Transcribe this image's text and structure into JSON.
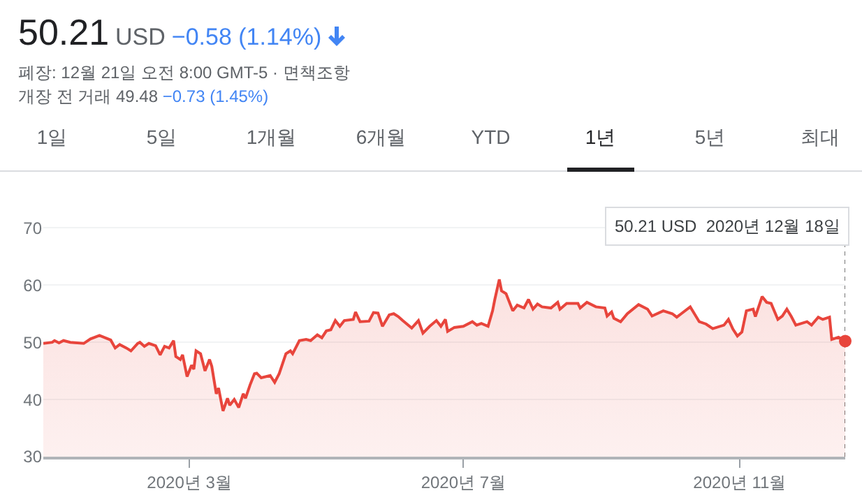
{
  "chart_data": {
    "type": "area",
    "title": "50.21 USD −0.58 (1.14%)",
    "subtitle": "폐장: 12월 21일 오전 8:00 GMT-5 · 면책조항",
    "annotations": [
      "개장 전 거래 49.48 −0.73 (1.45%)",
      "1일",
      "5일",
      "1개월",
      "6개월",
      "YTD",
      "1년",
      "5년",
      "최대",
      "50.21 USD  2020년 12월 18일"
    ],
    "x": [
      "2019-12-27",
      "2019-12-31",
      "2020-01-01",
      "2020-01-03",
      "2020-01-05",
      "2020-01-08",
      "2020-01-14",
      "2020-01-17",
      "2020-01-21",
      "2020-01-26",
      "2020-01-28",
      "2020-01-30",
      "2020-02-02",
      "2020-02-04",
      "2020-02-07",
      "2020-02-08",
      "2020-02-10",
      "2020-02-12",
      "2020-02-15",
      "2020-02-17",
      "2020-02-19",
      "2020-02-21",
      "2020-02-23",
      "2020-02-24",
      "2020-02-26",
      "2020-02-27",
      "2020-02-29",
      "2020-03-02",
      "2020-03-03",
      "2020-03-04",
      "2020-03-06",
      "2020-03-08",
      "2020-03-10",
      "2020-03-11",
      "2020-03-13",
      "2020-03-14",
      "2020-03-16",
      "2020-03-18",
      "2020-03-19",
      "2020-03-21",
      "2020-03-23",
      "2020-03-25",
      "2020-03-26",
      "2020-03-28",
      "2020-03-30",
      "2020-03-31",
      "2020-04-02",
      "2020-04-06",
      "2020-04-08",
      "2020-04-10",
      "2020-04-13",
      "2020-04-15",
      "2020-04-16",
      "2020-04-19",
      "2020-04-22",
      "2020-04-24",
      "2020-04-27",
      "2020-04-29",
      "2020-05-01",
      "2020-05-03",
      "2020-05-05",
      "2020-05-07",
      "2020-05-09",
      "2020-05-13",
      "2020-05-14",
      "2020-05-16",
      "2020-05-20",
      "2020-05-22",
      "2020-05-24",
      "2020-05-26",
      "2020-05-29",
      "2020-05-31",
      "2020-06-02",
      "2020-06-04",
      "2020-06-08",
      "2020-06-11",
      "2020-06-13",
      "2020-06-16",
      "2020-06-19",
      "2020-06-21",
      "2020-06-23",
      "2020-06-24",
      "2020-06-27",
      "2020-07-01",
      "2020-07-05",
      "2020-07-07",
      "2020-07-09",
      "2020-07-12",
      "2020-07-14",
      "2020-07-15",
      "2020-07-17",
      "2020-07-18",
      "2020-07-20",
      "2020-07-23",
      "2020-07-25",
      "2020-07-28",
      "2020-07-30",
      "2020-08-01",
      "2020-08-03",
      "2020-08-05",
      "2020-08-09",
      "2020-08-12",
      "2020-08-13",
      "2020-08-16",
      "2020-08-21",
      "2020-08-22",
      "2020-08-25",
      "2020-08-29",
      "2020-09-02",
      "2020-09-03",
      "2020-09-05",
      "2020-09-06",
      "2020-09-09",
      "2020-09-12",
      "2020-09-17",
      "2020-09-21",
      "2020-09-23",
      "2020-09-28",
      "2020-10-02",
      "2020-10-04",
      "2020-10-06",
      "2020-10-10",
      "2020-10-14",
      "2020-10-17",
      "2020-10-20",
      "2020-10-25",
      "2020-10-27",
      "2020-10-29",
      "2020-10-31",
      "2020-11-02",
      "2020-11-04",
      "2020-11-07",
      "2020-11-08",
      "2020-11-11",
      "2020-11-13",
      "2020-11-15",
      "2020-11-18",
      "2020-11-20",
      "2020-11-22",
      "2020-11-24",
      "2020-11-26",
      "2020-12-01",
      "2020-12-03",
      "2020-12-06",
      "2020-12-08",
      "2020-12-11",
      "2020-12-12",
      "2020-12-15",
      "2020-12-18"
    ],
    "series": [
      {
        "color": "#e8453c",
        "marker": "none",
        "values": [
          49.8,
          50.0,
          50.3,
          49.9,
          50.3,
          50.0,
          49.8,
          50.6,
          51.2,
          50.4,
          49.0,
          49.6,
          49.0,
          48.5,
          49.8,
          50.0,
          49.3,
          49.8,
          49.4,
          47.8,
          49.3,
          49.0,
          50.3,
          47.5,
          47.0,
          47.8,
          44.0,
          46.0,
          45.3,
          48.5,
          48.0,
          45.0,
          47.0,
          45.8,
          41.0,
          42.0,
          38.0,
          40.2,
          39.0,
          40.0,
          38.6,
          41.0,
          40.2,
          42.5,
          44.5,
          44.6,
          43.8,
          44.2,
          43.0,
          44.5,
          48.0,
          48.5,
          48.0,
          50.3,
          50.5,
          50.3,
          51.3,
          50.8,
          52.0,
          52.2,
          53.8,
          52.8,
          53.8,
          54.0,
          55.3,
          53.6,
          53.7,
          55.2,
          55.1,
          52.8,
          54.8,
          55.0,
          54.5,
          53.8,
          52.5,
          53.8,
          51.6,
          52.8,
          53.8,
          52.8,
          54.0,
          51.9,
          52.6,
          52.8,
          53.6,
          53.0,
          53.3,
          52.8,
          55.5,
          57.5,
          61.0,
          59.0,
          58.5,
          55.5,
          56.5,
          56.0,
          57.5,
          55.8,
          56.7,
          56.2,
          56.0,
          57.0,
          55.8,
          56.8,
          56.8,
          56.0,
          57.0,
          56.2,
          56.0,
          54.6,
          55.3,
          54.2,
          53.6,
          55.0,
          56.6,
          55.8,
          54.6,
          55.5,
          55.0,
          54.4,
          55.0,
          56.2,
          53.6,
          53.2,
          52.4,
          53.0,
          54.0,
          52.3,
          51.1,
          51.8,
          55.5,
          55.8,
          54.5,
          58.0,
          57.0,
          56.8,
          54.0,
          54.6,
          55.8,
          54.5,
          53.0,
          53.6,
          53.0,
          54.4,
          54.0,
          54.4,
          50.5,
          50.9,
          50.21
        ]
      },
      {
        "type": "scatter",
        "color": "#e8453c",
        "marker": "circle",
        "x": [
          "2020-12-18"
        ],
        "values": [
          50.21
        ]
      }
    ],
    "xlim": [
      "2019-12-27",
      "2020-12-18"
    ],
    "ylim": [
      30,
      72
    ],
    "xticks": [
      {
        "value": "2020-03-01",
        "label": "2020년 3월"
      },
      {
        "value": "2020-07-01",
        "label": "2020년 7월"
      },
      {
        "value": "2020-11-01",
        "label": "2020년 11월"
      }
    ],
    "yticks": [
      30,
      40,
      50,
      60,
      70
    ],
    "grid": "y",
    "ref_lines": [
      {
        "axis": "x",
        "value": "2020-12-18",
        "color": "#777777",
        "line_style": "dotted"
      }
    ]
  }
}
